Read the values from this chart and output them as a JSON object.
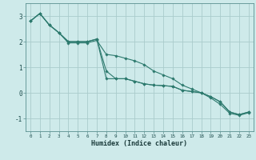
{
  "xlabel": "Humidex (Indice chaleur)",
  "bg_color": "#ceeaea",
  "grid_color": "#aacccc",
  "line_color": "#2d7a6e",
  "spine_color": "#5a9090",
  "xlim": [
    -0.5,
    23.5
  ],
  "ylim": [
    -1.5,
    3.5
  ],
  "yticks": [
    -1,
    0,
    1,
    2,
    3
  ],
  "xticks": [
    0,
    1,
    2,
    3,
    4,
    5,
    6,
    7,
    8,
    9,
    10,
    11,
    12,
    13,
    14,
    15,
    16,
    17,
    18,
    19,
    20,
    21,
    22,
    23
  ],
  "x": [
    0,
    1,
    2,
    3,
    4,
    5,
    6,
    7,
    8,
    9,
    10,
    11,
    12,
    13,
    14,
    15,
    16,
    17,
    18,
    19,
    20,
    21,
    22,
    23
  ],
  "series1": [
    2.8,
    3.1,
    2.65,
    2.35,
    2.0,
    2.0,
    2.0,
    2.1,
    0.55,
    0.55,
    0.55,
    0.45,
    0.35,
    0.3,
    0.28,
    0.25,
    0.1,
    0.05,
    0.0,
    -0.15,
    -0.35,
    -0.75,
    -0.85,
    -0.75
  ],
  "series2": [
    2.8,
    3.1,
    2.65,
    2.35,
    2.0,
    2.0,
    2.0,
    2.1,
    0.85,
    0.55,
    0.55,
    0.45,
    0.35,
    0.3,
    0.28,
    0.25,
    0.1,
    0.05,
    0.0,
    -0.15,
    -0.35,
    -0.75,
    -0.85,
    -0.75
  ],
  "series3": [
    2.8,
    3.1,
    2.65,
    2.35,
    1.95,
    1.95,
    1.95,
    2.05,
    1.5,
    1.45,
    1.35,
    1.25,
    1.1,
    0.85,
    0.7,
    0.55,
    0.3,
    0.15,
    0.0,
    -0.2,
    -0.45,
    -0.8,
    -0.88,
    -0.78
  ]
}
